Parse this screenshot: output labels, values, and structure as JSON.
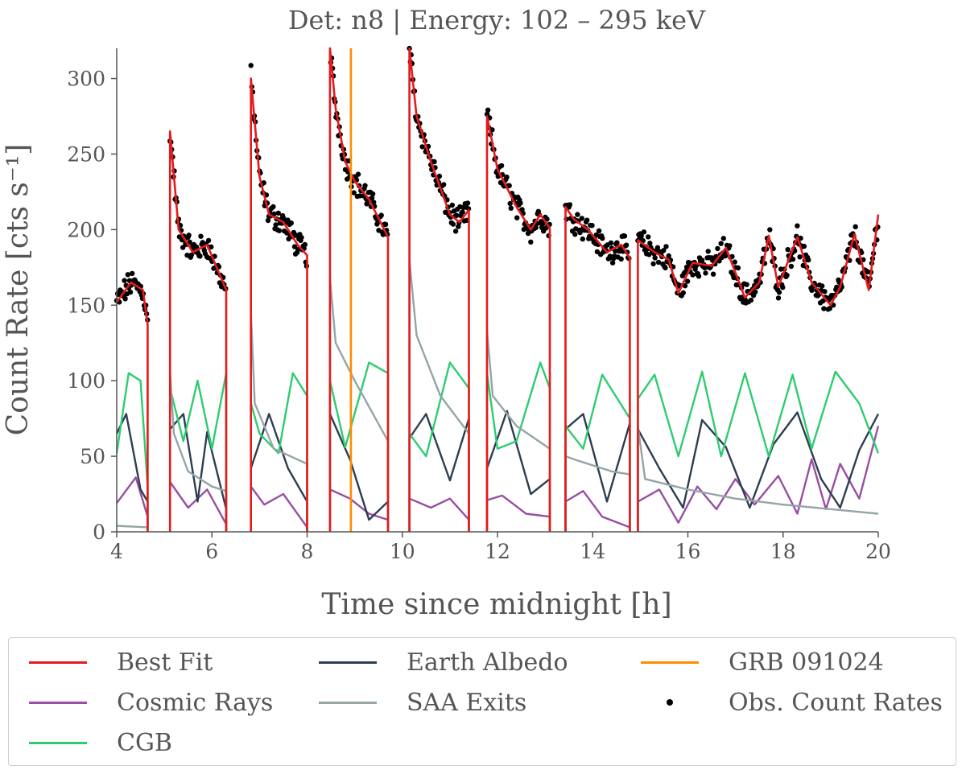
{
  "chart_data": {
    "type": "line",
    "title": "Det: n8 | Energy: 102 – 295 keV",
    "xlabel": "Time since midnight [h]",
    "ylabel": "Count Rate [cts s⁻¹]",
    "xlim": [
      4,
      20
    ],
    "ylim": [
      0,
      320
    ],
    "xticks": [
      4,
      6,
      8,
      10,
      12,
      14,
      16,
      18,
      20
    ],
    "yticks": [
      0,
      50,
      100,
      150,
      200,
      250,
      300
    ],
    "grid": false,
    "legend_position": "bottom",
    "segments": [
      [
        4.0,
        4.65
      ],
      [
        5.12,
        6.3
      ],
      [
        6.82,
        8.0
      ],
      [
        8.48,
        9.7
      ],
      [
        10.15,
        11.4
      ],
      [
        11.78,
        13.1
      ],
      [
        13.43,
        14.78
      ],
      [
        14.95,
        20.0
      ]
    ],
    "series": [
      {
        "name": "Best Fit",
        "color": "#e41a1c",
        "kind": "line",
        "x": [
          4.0,
          4.3,
          4.55,
          4.65,
          5.12,
          5.3,
          5.6,
          5.9,
          6.3,
          6.82,
          7.0,
          7.2,
          7.5,
          7.8,
          8.0,
          8.48,
          8.6,
          8.8,
          9.0,
          9.3,
          9.7,
          10.15,
          10.3,
          10.6,
          11.0,
          11.2,
          11.4,
          11.78,
          12.0,
          12.4,
          12.7,
          12.9,
          13.1,
          13.43,
          13.6,
          13.9,
          14.3,
          14.6,
          14.78,
          14.95,
          15.3,
          15.6,
          15.8,
          16.1,
          16.5,
          16.8,
          17.2,
          17.5,
          17.7,
          17.9,
          18.3,
          18.6,
          19.0,
          19.2,
          19.5,
          19.8,
          20.0
        ],
        "y": [
          152,
          165,
          160,
          137,
          265,
          200,
          185,
          190,
          160,
          300,
          235,
          210,
          205,
          190,
          183,
          320,
          280,
          245,
          232,
          220,
          195,
          320,
          275,
          245,
          210,
          205,
          213,
          275,
          240,
          215,
          200,
          210,
          201,
          215,
          207,
          200,
          185,
          190,
          181,
          193,
          185,
          180,
          158,
          178,
          176,
          188,
          155,
          165,
          196,
          162,
          195,
          165,
          150,
          162,
          197,
          160,
          210
        ]
      },
      {
        "name": "Cosmic Rays",
        "color": "#984ea3",
        "kind": "line",
        "x": [
          4.0,
          4.4,
          4.65,
          5.12,
          5.5,
          5.9,
          6.3,
          6.82,
          7.1,
          7.5,
          8.0,
          8.48,
          8.9,
          9.3,
          9.7,
          10.15,
          10.6,
          11.0,
          11.4,
          11.78,
          12.1,
          12.6,
          13.1,
          13.43,
          13.8,
          14.2,
          14.78,
          14.95,
          15.4,
          15.8,
          16.2,
          16.6,
          17.0,
          17.4,
          17.9,
          18.3,
          18.6,
          18.9,
          19.2,
          19.6,
          20.0
        ],
        "y": [
          19,
          36,
          10,
          33,
          16,
          28,
          5,
          30,
          18,
          25,
          3,
          28,
          22,
          12,
          8,
          22,
          16,
          22,
          8,
          21,
          24,
          12,
          10,
          20,
          27,
          10,
          3,
          20,
          28,
          6,
          30,
          15,
          35,
          18,
          37,
          12,
          48,
          15,
          45,
          22,
          70
        ]
      },
      {
        "name": "CGB",
        "color": "#2ecc71",
        "kind": "line",
        "x": [
          4.0,
          4.25,
          4.5,
          4.65,
          5.12,
          5.4,
          5.7,
          6.0,
          6.3,
          6.82,
          7.0,
          7.4,
          7.7,
          8.0,
          8.48,
          8.8,
          9.3,
          9.7,
          10.15,
          10.5,
          11.0,
          11.4,
          11.78,
          12.0,
          12.4,
          12.9,
          13.1,
          13.43,
          13.8,
          14.2,
          14.78,
          14.95,
          15.3,
          15.8,
          16.3,
          16.7,
          17.2,
          17.7,
          18.2,
          18.6,
          19.1,
          19.6,
          20.0
        ],
        "y": [
          52,
          105,
          100,
          30,
          95,
          60,
          100,
          55,
          105,
          85,
          65,
          52,
          105,
          90,
          100,
          56,
          112,
          105,
          65,
          50,
          112,
          95,
          105,
          55,
          60,
          112,
          95,
          70,
          55,
          104,
          75,
          88,
          104,
          50,
          106,
          50,
          105,
          50,
          104,
          55,
          106,
          85,
          52
        ]
      },
      {
        "name": "Earth Albedo",
        "color": "#2c3e50",
        "kind": "line",
        "x": [
          4.0,
          4.2,
          4.5,
          4.65,
          5.12,
          5.4,
          5.7,
          5.9,
          6.3,
          6.82,
          7.2,
          7.6,
          8.0,
          8.48,
          8.9,
          9.3,
          9.7,
          10.15,
          10.5,
          11.0,
          11.4,
          11.78,
          12.2,
          12.7,
          13.1,
          13.43,
          13.8,
          14.3,
          14.78,
          14.95,
          15.4,
          15.9,
          16.3,
          16.8,
          17.3,
          17.8,
          18.3,
          18.8,
          19.2,
          19.6,
          20.0
        ],
        "y": [
          65,
          78,
          28,
          20,
          68,
          78,
          20,
          66,
          15,
          42,
          78,
          42,
          20,
          78,
          48,
          8,
          20,
          62,
          78,
          34,
          75,
          42,
          80,
          25,
          35,
          68,
          78,
          20,
          72,
          68,
          42,
          16,
          74,
          56,
          16,
          58,
          79,
          35,
          16,
          54,
          78
        ]
      },
      {
        "name": "SAA Exits",
        "color": "#95a5a6",
        "kind": "line",
        "x": [
          4.0,
          4.65,
          5.12,
          5.2,
          5.5,
          6.0,
          6.3,
          6.82,
          6.9,
          7.3,
          8.0,
          8.48,
          8.6,
          9.0,
          9.7,
          10.15,
          10.3,
          10.8,
          11.4,
          11.78,
          11.9,
          12.4,
          13.1,
          13.43,
          13.7,
          14.4,
          14.78,
          14.95,
          15.1,
          16.0,
          17.0,
          18.0,
          19.0,
          20.0
        ],
        "y": [
          4,
          3,
          106,
          65,
          40,
          30,
          27,
          145,
          85,
          55,
          45,
          168,
          125,
          100,
          60,
          180,
          130,
          90,
          65,
          133,
          90,
          70,
          55,
          50,
          47,
          40,
          38,
          70,
          35,
          28,
          22,
          18,
          15,
          12
        ]
      },
      {
        "name": "GRB 091024",
        "color": "#ff8c00",
        "kind": "vline",
        "x": 8.92
      },
      {
        "name": "Obs. Count Rates",
        "color": "#000000",
        "kind": "scatter"
      }
    ]
  },
  "legend": {
    "items": [
      {
        "label": "Best Fit",
        "color": "#e41a1c",
        "kind": "line"
      },
      {
        "label": "Earth Albedo",
        "color": "#2c3e50",
        "kind": "line"
      },
      {
        "label": "GRB 091024",
        "color": "#ff8c00",
        "kind": "line"
      },
      {
        "label": "Cosmic Rays",
        "color": "#984ea3",
        "kind": "line"
      },
      {
        "label": "SAA Exits",
        "color": "#95a5a6",
        "kind": "line"
      },
      {
        "label": "Obs. Count Rates",
        "color": "#000000",
        "kind": "dot"
      },
      {
        "label": "CGB",
        "color": "#2ecc71",
        "kind": "line"
      }
    ]
  }
}
